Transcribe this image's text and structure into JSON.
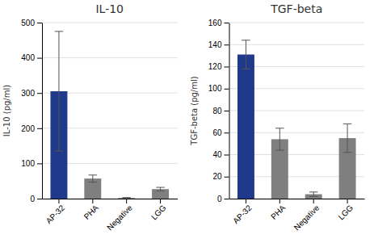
{
  "chart_data": [
    {
      "type": "bar",
      "title": "IL-10",
      "ylabel": "IL-10 (pg/ml)",
      "categories": [
        "AP-32",
        "PHA",
        "Negative",
        "LGG"
      ],
      "values": [
        305,
        57,
        2,
        27
      ],
      "errors": [
        170,
        10,
        1,
        5
      ],
      "colors": [
        "#1F3A8A",
        "#7f7f7f",
        "#7f7f7f",
        "#7f7f7f"
      ],
      "ylim": [
        0,
        500
      ],
      "yticks": [
        0,
        100,
        200,
        300,
        400,
        500
      ],
      "grid": true
    },
    {
      "type": "bar",
      "title": "TGF-beta",
      "ylabel": "TGF-beta (pg/ml)",
      "categories": [
        "AP-32",
        "PHA",
        "Negative",
        "LGG"
      ],
      "values": [
        131,
        54,
        4,
        55
      ],
      "errors": [
        13,
        10,
        2,
        13
      ],
      "colors": [
        "#1F3A8A",
        "#7f7f7f",
        "#7f7f7f",
        "#7f7f7f"
      ],
      "ylim": [
        0,
        160
      ],
      "yticks": [
        0,
        20,
        40,
        60,
        80,
        100,
        120,
        140,
        160
      ],
      "grid": true
    }
  ]
}
